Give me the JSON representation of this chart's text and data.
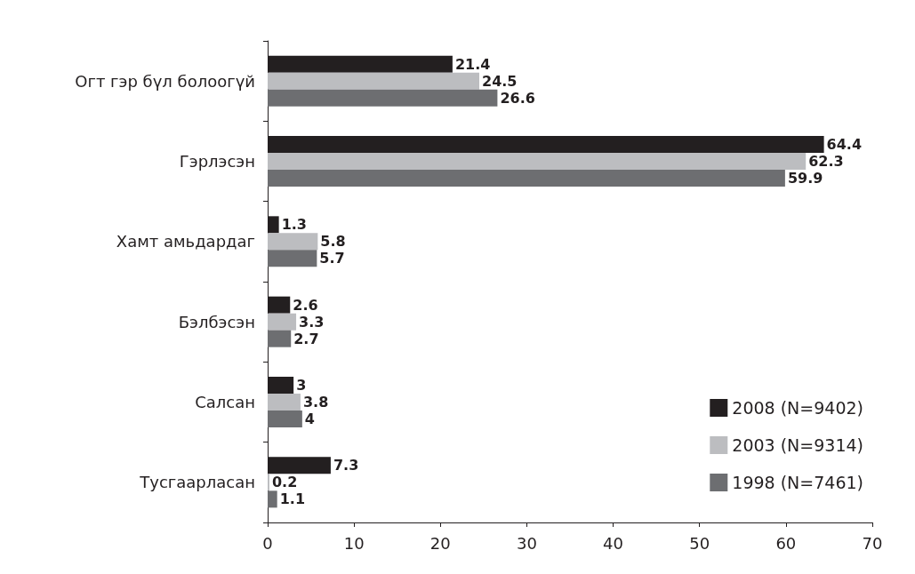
{
  "chart_data": {
    "type": "bar",
    "orientation": "horizontal",
    "categories": [
      "Огт гэр бүл болоогүй",
      "Гэрлэсэн",
      "Хамт амьдардаг",
      "Бэлбэсэн",
      "Салсан",
      "Тусгаарласан"
    ],
    "series": [
      {
        "name": "2008 (N=9402)",
        "color": "#231f20",
        "values": [
          21.4,
          64.4,
          1.3,
          2.6,
          3,
          7.3
        ]
      },
      {
        "name": "2003 (N=9314)",
        "color": "#bcbdc0",
        "values": [
          24.5,
          62.3,
          5.8,
          3.3,
          3.8,
          0.2
        ]
      },
      {
        "name": "1998 (N=7461)",
        "color": "#6d6e71",
        "values": [
          26.6,
          59.9,
          5.7,
          2.7,
          4,
          1.1
        ]
      }
    ],
    "xlim": [
      0,
      70
    ],
    "xticks": [
      0,
      10,
      20,
      30,
      40,
      50,
      60,
      70
    ],
    "data_labels": true,
    "legend": "bottom right",
    "grid": false
  }
}
